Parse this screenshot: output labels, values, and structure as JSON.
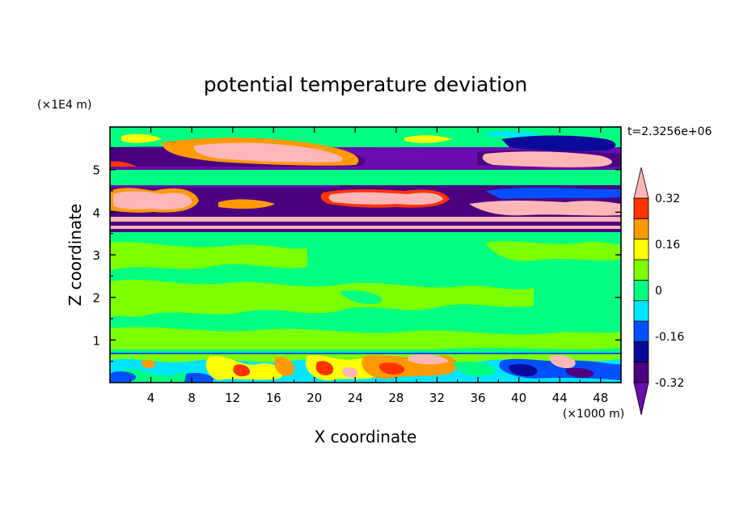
{
  "chart_data": {
    "type": "heatmap",
    "title": "potential temperature deviation",
    "xlabel": "X coordinate",
    "ylabel": "Z coordinate",
    "x_unit": "(×1000 m)",
    "y_unit": "(×1E4 m)",
    "time_label": "t=2.3256e+06",
    "xlim": [
      0,
      50
    ],
    "ylim": [
      0,
      6
    ],
    "x_ticks": [
      4,
      8,
      12,
      16,
      20,
      24,
      28,
      32,
      36,
      40,
      44,
      48
    ],
    "y_ticks": [
      1,
      2,
      3,
      4,
      5
    ],
    "colorbar": {
      "levels": [
        -0.4,
        -0.32,
        -0.24,
        -0.16,
        -0.08,
        0,
        0.08,
        0.16,
        0.24,
        0.32,
        0.4
      ],
      "colors": [
        "#6a0dad",
        "#4b0082",
        "#0a0a9a",
        "#0050ff",
        "#00e5ff",
        "#00ff80",
        "#7cff00",
        "#ffff00",
        "#ff9900",
        "#ff3300",
        "#ffb6b6"
      ],
      "tick_labels": [
        "-0.32",
        "-0.16",
        "0",
        "0.16",
        "0.32"
      ],
      "tick_values": [
        -0.32,
        -0.16,
        0,
        0.16,
        0.32
      ],
      "extend": "both"
    },
    "field_regions": [
      {
        "zone": "upper",
        "z_range": [
          3.55,
          6.0
        ],
        "features": [
          "lenses",
          "inversion bands"
        ],
        "value_range": [
          -0.4,
          0.4
        ]
      },
      {
        "zone": "middle",
        "z_range": [
          0.7,
          3.55
        ],
        "features": [
          "near-zero band"
        ],
        "value_range": [
          -0.08,
          0.08
        ]
      },
      {
        "zone": "lower",
        "z_range": [
          0.0,
          0.7
        ],
        "features": [
          "turbulent eddies"
        ],
        "value_range": [
          -0.4,
          0.4
        ]
      }
    ]
  }
}
